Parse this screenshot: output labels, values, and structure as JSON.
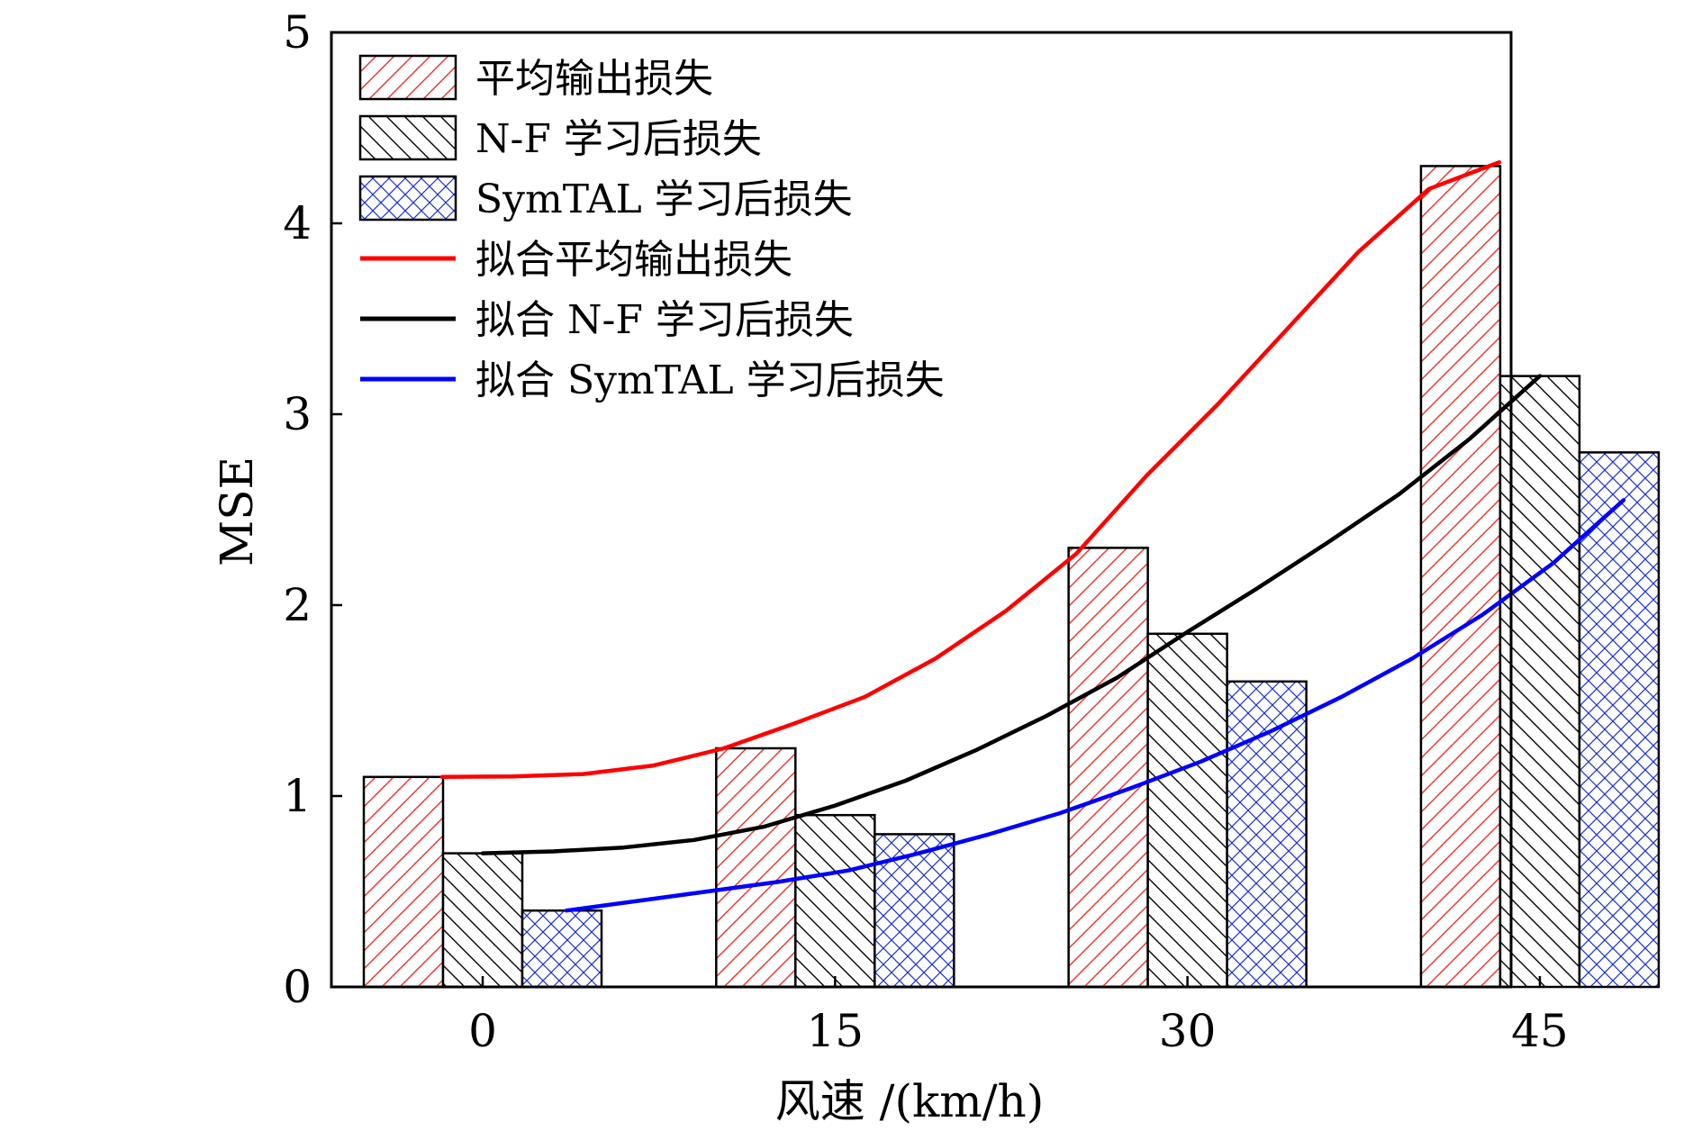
{
  "chart_data": {
    "type": "bar",
    "title": "",
    "xlabel": "风速 /(km/h)",
    "ylabel": "MSE",
    "categories": [
      "0",
      "15",
      "30",
      "45"
    ],
    "ylim": [
      0,
      5
    ],
    "yticks": [
      "0",
      "1",
      "2",
      "3",
      "4",
      "5"
    ],
    "grid": false,
    "legend_position": "top-left",
    "series": [
      {
        "name": "平均输出损失",
        "values": [
          1.1,
          1.25,
          2.3,
          4.3
        ],
        "color": "#e8302a",
        "pattern": "diagonal-up"
      },
      {
        "name": "N-F 学习后损失",
        "values": [
          0.7,
          0.9,
          1.85,
          3.2
        ],
        "color": "#000000",
        "pattern": "diagonal-down"
      },
      {
        "name": "SymTAL 学习后损失",
        "values": [
          0.4,
          0.8,
          1.6,
          2.8
        ],
        "color": "#1a2fd6",
        "pattern": "crosshatch"
      }
    ],
    "fit_lines": [
      {
        "name": "拟合平均输出损失",
        "color": "#ff0000",
        "x": [
          0,
          3,
          6,
          9,
          12,
          15,
          18,
          21,
          24,
          27,
          30,
          33,
          36,
          39,
          42,
          45
        ],
        "y": [
          1.1,
          1.103,
          1.115,
          1.16,
          1.25,
          1.38,
          1.52,
          1.72,
          1.97,
          2.27,
          2.68,
          3.05,
          3.45,
          3.85,
          4.18,
          4.32
        ]
      },
      {
        "name": "拟合 N-F 学习后损失",
        "color": "#000000",
        "x": [
          0,
          3,
          6,
          9,
          12,
          15,
          18,
          21,
          24,
          27,
          30,
          33,
          36,
          39,
          42,
          45
        ],
        "y": [
          0.7,
          0.71,
          0.73,
          0.77,
          0.84,
          0.95,
          1.08,
          1.24,
          1.42,
          1.62,
          1.86,
          2.09,
          2.33,
          2.58,
          2.87,
          3.2
        ]
      },
      {
        "name": "拟合 SymTAL 学习后损失",
        "color": "#0000ff",
        "x": [
          0,
          3,
          6,
          9,
          12,
          15,
          18,
          21,
          24,
          27,
          30,
          33,
          36,
          39,
          42,
          45
        ],
        "y": [
          0.4,
          0.45,
          0.5,
          0.55,
          0.61,
          0.7,
          0.8,
          0.91,
          1.04,
          1.18,
          1.34,
          1.52,
          1.72,
          1.95,
          2.22,
          2.55
        ]
      }
    ]
  }
}
